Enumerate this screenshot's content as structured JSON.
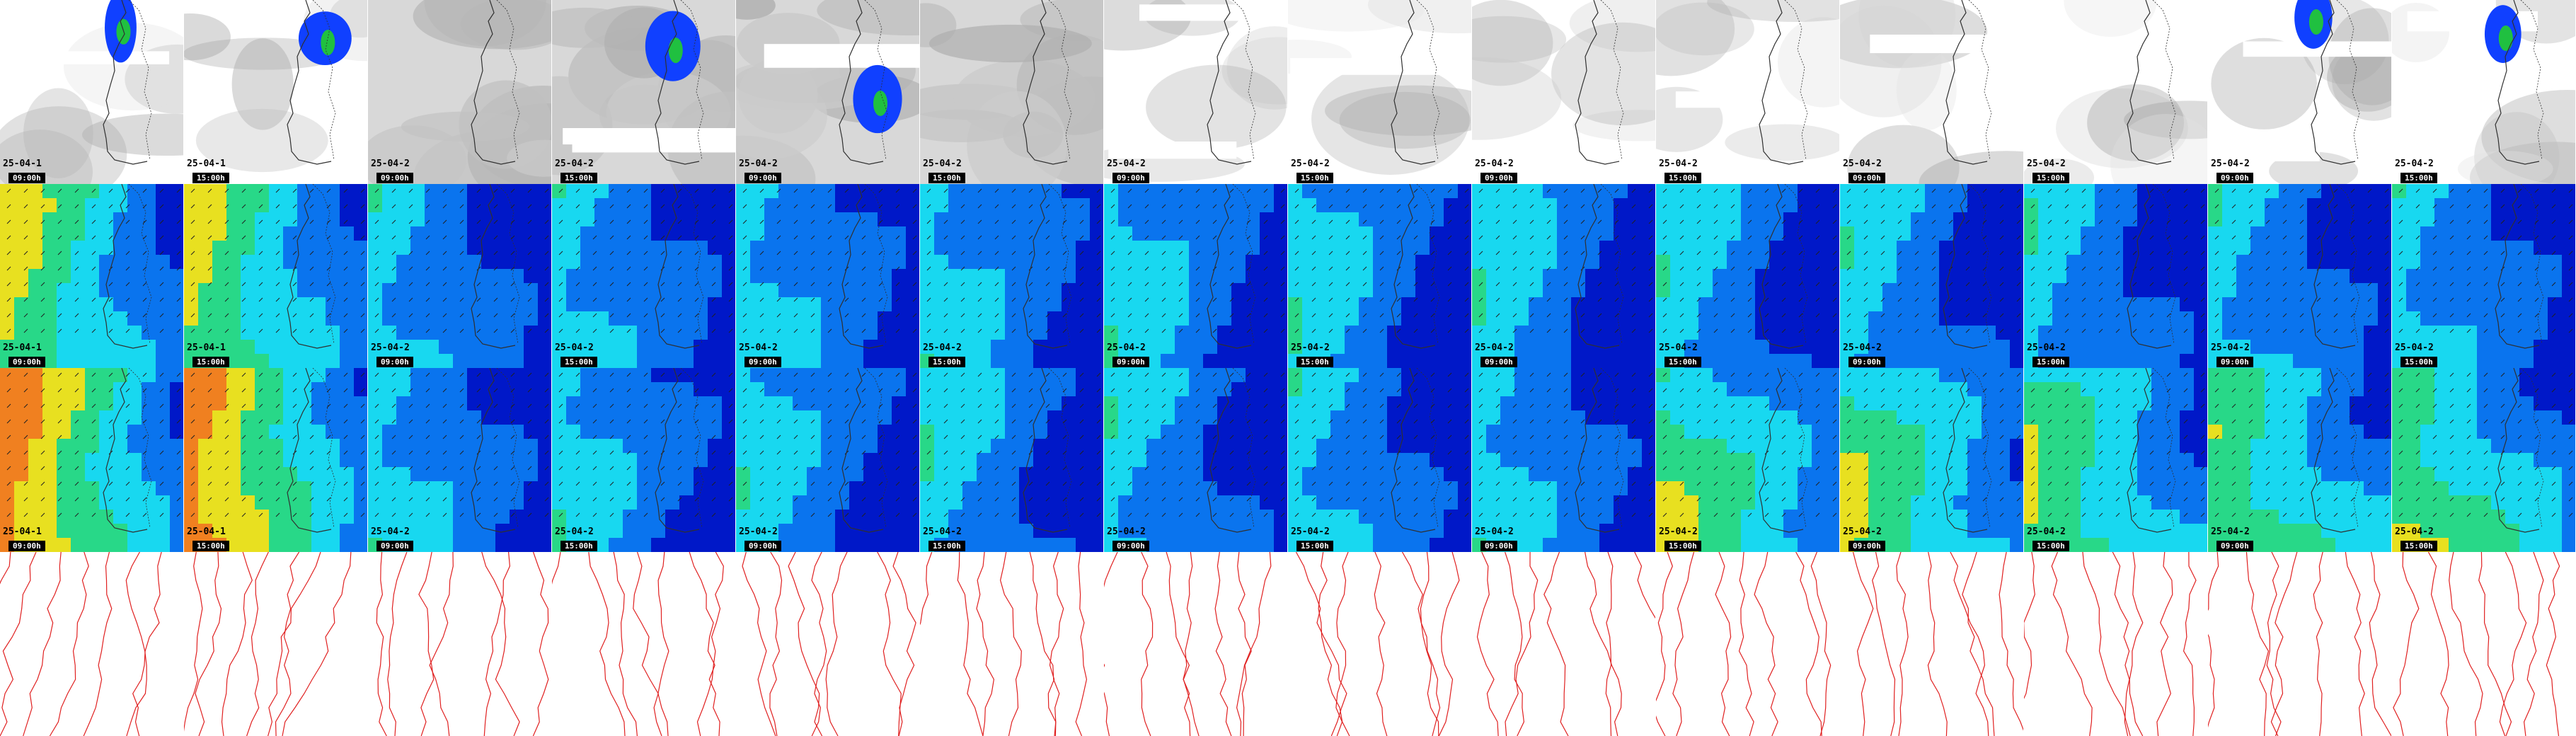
{
  "rows": [
    {
      "kind": "precip",
      "name": "row-precipitation"
    },
    {
      "kind": "wind",
      "name": "row-wind-low"
    },
    {
      "kind": "wind2",
      "name": "row-wind-high"
    },
    {
      "kind": "pressure",
      "name": "row-pressure"
    }
  ],
  "columns": [
    {
      "date": "25-04-1",
      "time": "09:00h"
    },
    {
      "date": "25-04-1",
      "time": "15:00h"
    },
    {
      "date": "25-04-2",
      "time": "09:00h"
    },
    {
      "date": "25-04-2",
      "time": "15:00h"
    },
    {
      "date": "25-04-2",
      "time": "09:00h"
    },
    {
      "date": "25-04-2",
      "time": "15:00h"
    },
    {
      "date": "25-04-2",
      "time": "09:00h"
    },
    {
      "date": "25-04-2",
      "time": "15:00h"
    },
    {
      "date": "25-04-2",
      "time": "09:00h"
    },
    {
      "date": "25-04-2",
      "time": "15:00h"
    },
    {
      "date": "25-04-2",
      "time": "09:00h"
    },
    {
      "date": "25-04-2",
      "time": "15:00h"
    },
    {
      "date": "25-04-2",
      "time": "09:00h"
    },
    {
      "date": "25-04-2",
      "time": "15:00h"
    }
  ],
  "colors": {
    "wind_dark": "#0018c8",
    "wind_mid": "#0a74ee",
    "wind_light": "#18d8f0",
    "wind_green": "#28d888",
    "wind_yellow": "#e8e020",
    "wind_orange": "#f08020",
    "isobar": "#e02020",
    "coast": "#303030",
    "precip_blue": "#1040ff",
    "precip_green": "#20c040"
  }
}
